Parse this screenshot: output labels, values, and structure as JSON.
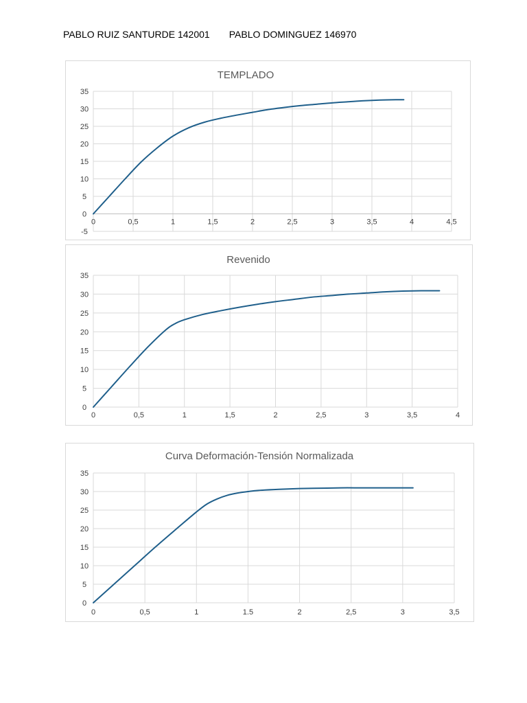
{
  "header": {
    "author1": "PABLO RUIZ SANTURDE 142001",
    "author2": "PABLO DOMINGUEZ 146970"
  },
  "chart_data": [
    {
      "type": "line",
      "title": "TEMPLADO",
      "xlabel": "",
      "ylabel": "",
      "xlim": [
        0,
        4.5
      ],
      "ylim": [
        -5,
        35
      ],
      "x_ticks": [
        "0",
        "0,5",
        "1",
        "1,5",
        "2",
        "2,5",
        "3",
        "3,5",
        "4",
        "4,5"
      ],
      "y_ticks": [
        "-5",
        "0",
        "5",
        "10",
        "15",
        "20",
        "25",
        "30",
        "35"
      ],
      "grid": true,
      "line_color": "#1f5f8b",
      "series": [
        {
          "name": "",
          "x": [
            0,
            0.2,
            0.4,
            0.6,
            0.8,
            1.0,
            1.2,
            1.4,
            1.6,
            1.8,
            2.0,
            2.2,
            2.4,
            2.6,
            2.8,
            3.0,
            3.2,
            3.4,
            3.6,
            3.8,
            3.9
          ],
          "y": [
            0,
            5,
            10,
            14.8,
            18.8,
            22.2,
            24.6,
            26.2,
            27.3,
            28.2,
            29.0,
            29.8,
            30.4,
            30.9,
            31.3,
            31.7,
            32.0,
            32.3,
            32.5,
            32.6,
            32.6
          ]
        }
      ]
    },
    {
      "type": "line",
      "title": "Revenido",
      "xlabel": "",
      "ylabel": "",
      "xlim": [
        0,
        4
      ],
      "ylim": [
        0,
        35
      ],
      "x_ticks": [
        "0",
        "0,5",
        "1",
        "1,5",
        "2",
        "2,5",
        "3",
        "3,5",
        "4"
      ],
      "y_ticks": [
        "0",
        "5",
        "10",
        "15",
        "20",
        "25",
        "30",
        "35"
      ],
      "grid": true,
      "line_color": "#1f5f8b",
      "series": [
        {
          "name": "",
          "x": [
            0,
            0.2,
            0.4,
            0.6,
            0.8,
            0.9,
            1.0,
            1.2,
            1.4,
            1.6,
            1.8,
            2.0,
            2.2,
            2.4,
            2.6,
            2.8,
            3.0,
            3.2,
            3.4,
            3.6,
            3.8
          ],
          "y": [
            0,
            5.4,
            10.8,
            16,
            20.6,
            22.2,
            23.2,
            24.6,
            25.6,
            26.5,
            27.3,
            28.0,
            28.6,
            29.2,
            29.6,
            30.0,
            30.3,
            30.6,
            30.8,
            30.9,
            30.9
          ]
        }
      ]
    },
    {
      "type": "line",
      "title": "Curva Deformación-Tensión Normalizada",
      "xlabel": "",
      "ylabel": "",
      "xlim": [
        0,
        3.5
      ],
      "ylim": [
        0,
        35
      ],
      "x_ticks": [
        "0",
        "0,5",
        "1",
        "1.5",
        "2",
        "2,5",
        "3",
        "3,5"
      ],
      "y_ticks": [
        "0",
        "5",
        "10",
        "15",
        "20",
        "25",
        "30",
        "35"
      ],
      "grid": true,
      "line_color": "#1f5f8b",
      "series": [
        {
          "name": "",
          "x": [
            0,
            0.2,
            0.4,
            0.6,
            0.8,
            1.0,
            1.1,
            1.2,
            1.3,
            1.4,
            1.5,
            1.6,
            1.8,
            2.0,
            2.2,
            2.4,
            2.6,
            2.8,
            3.0,
            3.1
          ],
          "y": [
            0,
            5.0,
            10.0,
            15.0,
            19.8,
            24.5,
            26.6,
            28.0,
            29.0,
            29.6,
            30.0,
            30.3,
            30.6,
            30.8,
            30.9,
            31.0,
            31.0,
            31.0,
            31.0,
            31.0
          ]
        }
      ]
    }
  ]
}
